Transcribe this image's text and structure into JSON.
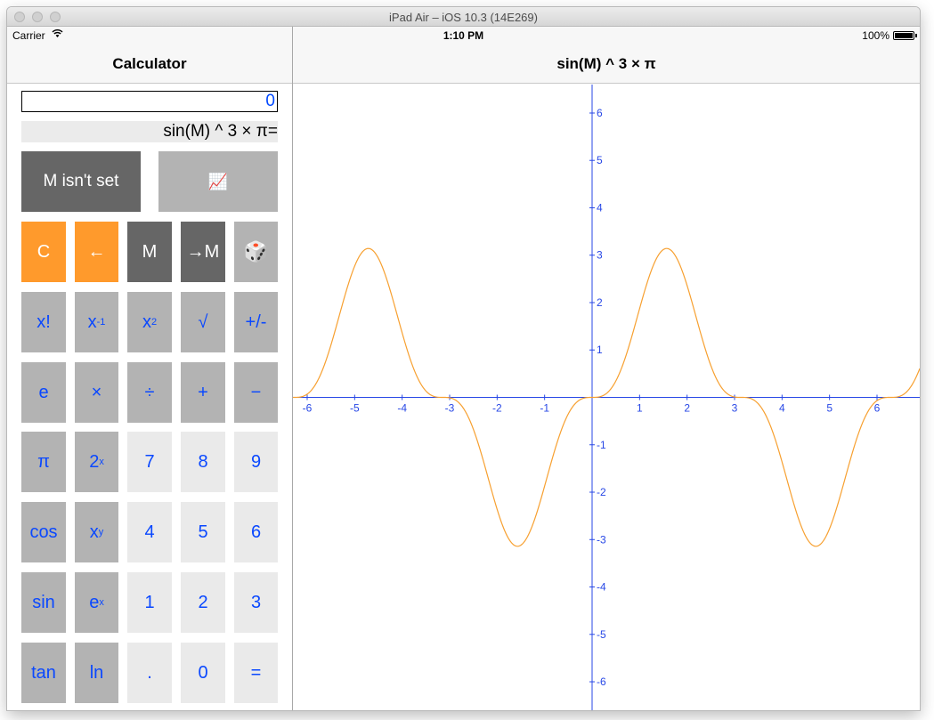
{
  "window": {
    "title": "iPad Air – iOS 10.3 (14E269)"
  },
  "status": {
    "carrier": "Carrier",
    "time": "1:10 PM",
    "battery": "100%"
  },
  "nav": {
    "left_title": "Calculator",
    "right_title": "sin(M) ^ 3 × π"
  },
  "calc": {
    "display": "0",
    "description": "sin(M) ^ 3 × π=",
    "memory_label": "M isn't set",
    "graph_button": "📈",
    "row1": [
      "C",
      "←",
      "M",
      "→M",
      "🎲"
    ],
    "row2": {
      "fact": "x!",
      "inv_base": "x",
      "inv_exp": "-1",
      "sq_base": "x",
      "sq_exp": "2",
      "sqrt": "√",
      "sign": "+/-"
    },
    "row3": [
      "e",
      "×",
      "÷",
      "+",
      "−"
    ],
    "row4": {
      "pi": "π",
      "pow2_base": "2",
      "pow2_exp": "x",
      "d7": "7",
      "d8": "8",
      "d9": "9"
    },
    "row5": {
      "cos": "cos",
      "xy_base": "x",
      "xy_exp": "y",
      "d4": "4",
      "d5": "5",
      "d6": "6"
    },
    "row6": {
      "sin": "sin",
      "ex_base": "e",
      "ex_exp": "x",
      "d1": "1",
      "d2": "2",
      "d3": "3"
    },
    "row7": [
      "tan",
      "ln",
      ".",
      "0",
      "="
    ]
  },
  "colors": {
    "orange": "#ff9a2c",
    "dark": "#666666",
    "mid": "#b3b3b3",
    "light": "#eaeaea",
    "accent": "#0a48ff",
    "axis": "#2747e6",
    "curve": "#f7a030"
  },
  "chart_data": {
    "type": "line",
    "function": "sin(x)^3 * π",
    "xlim": [
      -6.3,
      6.9
    ],
    "ylim": [
      -6.6,
      6.6
    ],
    "x_ticks": [
      -6,
      -5,
      -4,
      -3,
      -2,
      -1,
      1,
      2,
      3,
      4,
      5,
      6
    ],
    "y_ticks": [
      -6,
      -5,
      -4,
      -3,
      -2,
      -1,
      1,
      2,
      3,
      4,
      5,
      6
    ],
    "grid": false
  }
}
